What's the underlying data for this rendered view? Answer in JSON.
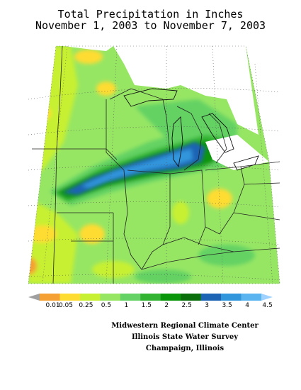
{
  "title": {
    "line1": "Total Precipitation in Inches",
    "line2": "November 1, 2003 to November 7, 2003"
  },
  "legend": {
    "labels": [
      "0.01",
      "0.05",
      "0.25",
      "0.5",
      "1",
      "1.5",
      "2",
      "2.5",
      "3",
      "3.5",
      "4",
      "4.5"
    ],
    "colors": [
      "#a0a0a0",
      "#f5a032",
      "#ffdc32",
      "#c8f032",
      "#96e664",
      "#64d264",
      "#32b432",
      "#0a960a",
      "#0a6e0a",
      "#1e64b4",
      "#3296dc",
      "#5ab4f0",
      "#a0d2ff"
    ]
  },
  "credits": {
    "line1": "Midwestern Regional Climate Center",
    "line2": "Illinois State Water Survey",
    "line3": "Champaign, Illinois"
  }
}
